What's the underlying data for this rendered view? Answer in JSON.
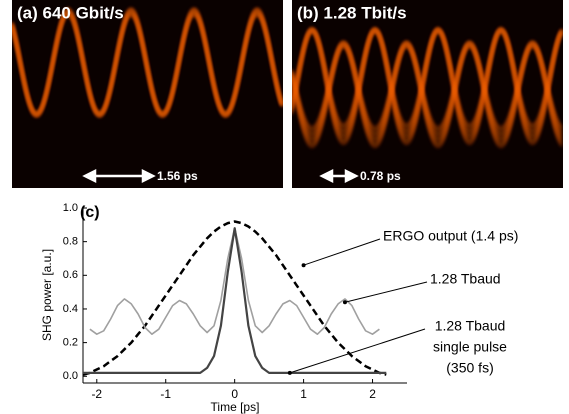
{
  "panels": [
    {
      "label": "(a) 640 Gbit/s",
      "marker": "1.56 ps"
    },
    {
      "label": "(b) 1.28 Tbit/s",
      "marker": "0.78 ps"
    }
  ],
  "chart_data": {
    "type": "line",
    "panel_label": "(c)",
    "x_label": "Time [ps]",
    "y_label": "SHG power [a.u.]",
    "x": [
      -2.2,
      -2.1,
      -2.0,
      -1.9,
      -1.8,
      -1.7,
      -1.6,
      -1.5,
      -1.4,
      -1.3,
      -1.2,
      -1.1,
      -1.0,
      -0.9,
      -0.8,
      -0.7,
      -0.6,
      -0.5,
      -0.4,
      -0.3,
      -0.2,
      -0.1,
      0,
      0.1,
      0.2,
      0.3,
      0.4,
      0.5,
      0.6,
      0.7,
      0.8,
      0.9,
      1.0,
      1.1,
      1.2,
      1.3,
      1.4,
      1.5,
      1.6,
      1.7,
      1.8,
      1.9,
      2.0,
      2.1,
      2.2
    ],
    "series": [
      {
        "color": "#000000",
        "dashed": true,
        "width": 2.5,
        "values": [
          0.01,
          0.02,
          0.04,
          0.06,
          0.09,
          0.12,
          0.16,
          0.2,
          0.25,
          0.3,
          0.36,
          0.42,
          0.48,
          0.54,
          0.6,
          0.66,
          0.72,
          0.77,
          0.82,
          0.86,
          0.89,
          0.91,
          0.92,
          0.91,
          0.89,
          0.86,
          0.82,
          0.77,
          0.72,
          0.66,
          0.6,
          0.54,
          0.48,
          0.42,
          0.36,
          0.3,
          0.25,
          0.2,
          0.16,
          0.12,
          0.09,
          0.06,
          0.04,
          0.02,
          0.01
        ]
      },
      {
        "color": "#a0a0a0",
        "dashed": false,
        "width": 1.6,
        "values": [
          null,
          0.28,
          0.25,
          0.27,
          0.34,
          0.42,
          0.46,
          0.43,
          0.37,
          0.29,
          0.25,
          0.28,
          0.35,
          0.42,
          0.45,
          0.43,
          0.37,
          0.3,
          0.26,
          0.3,
          0.45,
          0.7,
          0.88,
          0.7,
          0.45,
          0.3,
          0.26,
          0.3,
          0.37,
          0.43,
          0.45,
          0.42,
          0.35,
          0.28,
          0.25,
          0.29,
          0.37,
          0.43,
          0.46,
          0.42,
          0.34,
          0.27,
          0.25,
          0.28,
          null
        ]
      },
      {
        "color": "#444444",
        "dashed": false,
        "width": 2.2,
        "values": [
          0.02,
          0.02,
          0.02,
          0.02,
          0.02,
          0.02,
          0.02,
          0.02,
          0.02,
          0.02,
          0.02,
          0.02,
          0.02,
          0.02,
          0.02,
          0.02,
          0.02,
          0.02,
          0.05,
          0.12,
          0.3,
          0.62,
          0.88,
          0.62,
          0.3,
          0.12,
          0.05,
          0.02,
          0.02,
          0.02,
          0.02,
          0.02,
          0.02,
          0.02,
          0.02,
          0.02,
          0.02,
          0.02,
          0.02,
          0.02,
          0.02,
          0.02,
          0.02,
          0.02,
          0.02
        ]
      }
    ],
    "annotations": [
      {
        "lines": [
          "ERGO output (1.4 ps)"
        ],
        "x": 1.0,
        "y": 0.66
      },
      {
        "lines": [
          "1.28 Tbaud"
        ],
        "x": 1.6,
        "y": 0.44
      },
      {
        "lines": [
          "1.28 Tbaud",
          "single pulse",
          "(350 fs)"
        ],
        "x": 0.8,
        "y": 0.02
      }
    ],
    "xlim": [
      -2.2,
      2.5
    ],
    "ylim": [
      -0.04,
      1.0
    ],
    "xticks": [
      -2,
      -1,
      0,
      1,
      2
    ],
    "yticks": [
      {
        "value": 0,
        "label": "0.0"
      },
      0.2,
      0.4,
      0.6,
      0.8,
      {
        "value": 1,
        "label": "1.0"
      }
    ]
  }
}
